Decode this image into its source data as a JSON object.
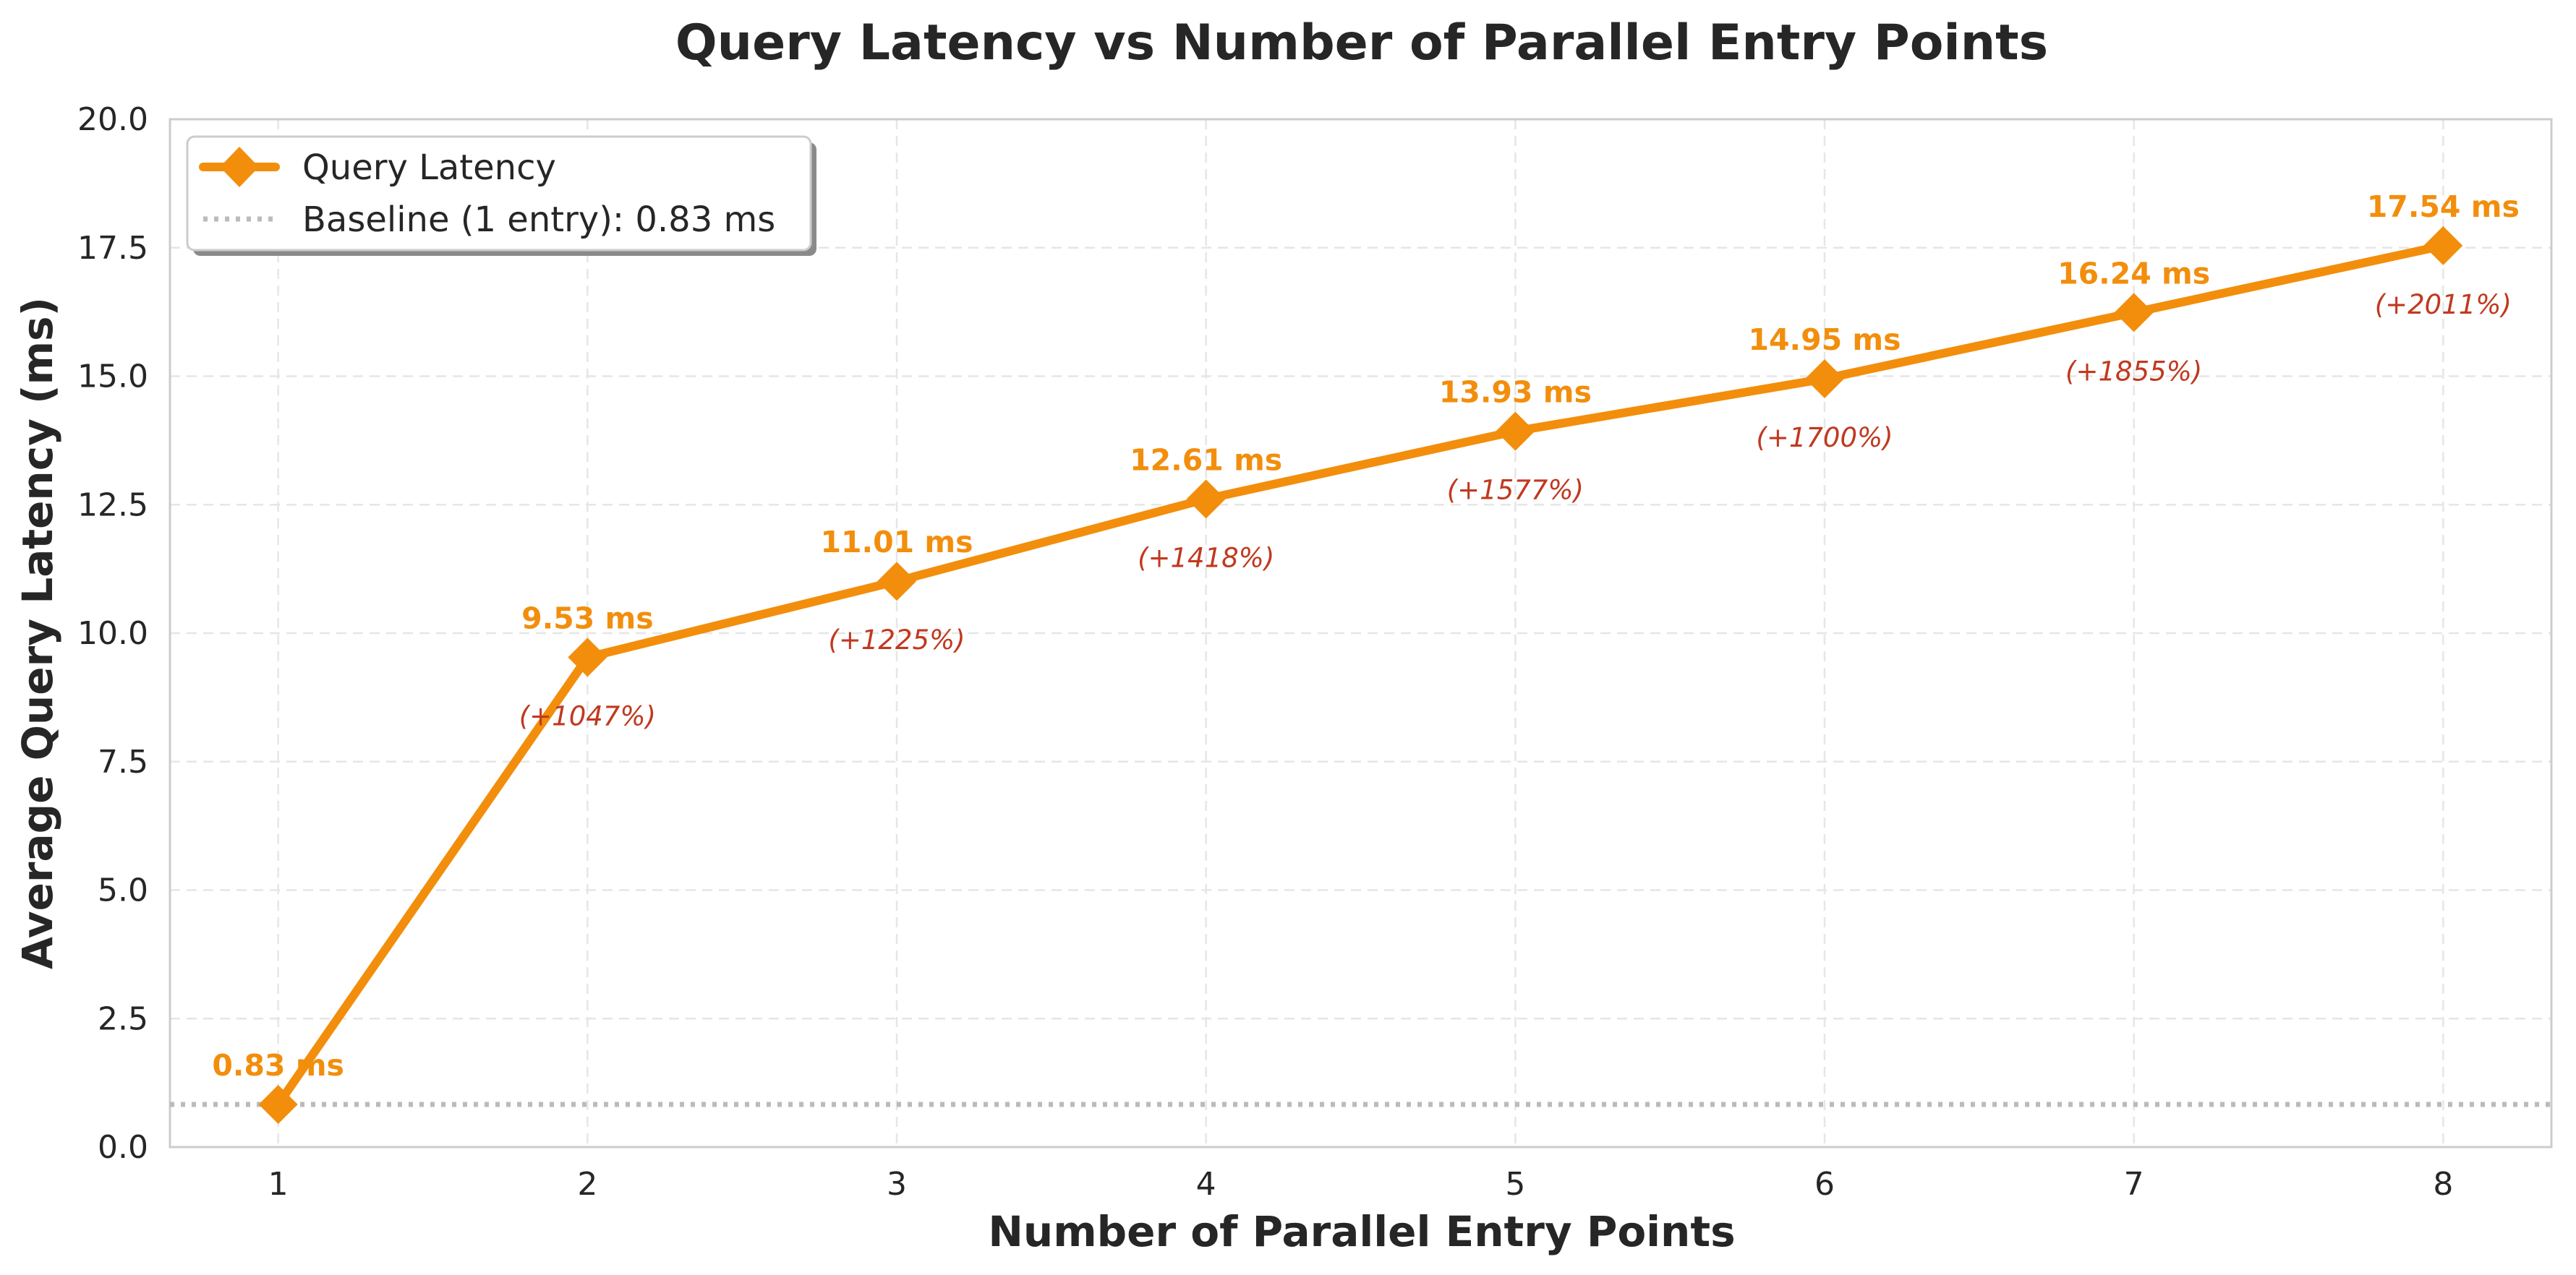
{
  "chart_data": {
    "type": "line",
    "title": "Query Latency vs Number of Parallel Entry Points",
    "xlabel": "Number of Parallel Entry Points",
    "ylabel": "Average Query Latency (ms)",
    "x": [
      1,
      2,
      3,
      4,
      5,
      6,
      7,
      8
    ],
    "xlim": [
      0.65,
      8.35
    ],
    "ylim": [
      0,
      20
    ],
    "y_ticks": [
      "0.0",
      "2.5",
      "5.0",
      "7.5",
      "10.0",
      "12.5",
      "15.0",
      "17.5",
      "20.0"
    ],
    "x_ticks": [
      "1",
      "2",
      "3",
      "4",
      "5",
      "6",
      "7",
      "8"
    ],
    "series": [
      {
        "name": "Query Latency",
        "values": [
          0.83,
          9.53,
          11.01,
          12.61,
          13.93,
          14.95,
          16.24,
          17.54
        ],
        "value_labels": [
          "0.83 ms",
          "9.53 ms",
          "11.01 ms",
          "12.61 ms",
          "13.93 ms",
          "14.95 ms",
          "16.24 ms",
          "17.54 ms"
        ],
        "pct_labels": [
          "",
          "(+1047%)",
          "(+1225%)",
          "(+1418%)",
          "(+1577%)",
          "(+1700%)",
          "(+1855%)",
          "(+2011%)"
        ],
        "color": "#f28e0c",
        "marker": "diamond"
      }
    ],
    "baseline": {
      "name": "Baseline (1 entry): 0.83 ms",
      "value": 0.83,
      "color": "#bbbbbb",
      "style": "dotted"
    },
    "annotation_color": "#c0391f",
    "grid": true,
    "legend_position": "top-left"
  }
}
